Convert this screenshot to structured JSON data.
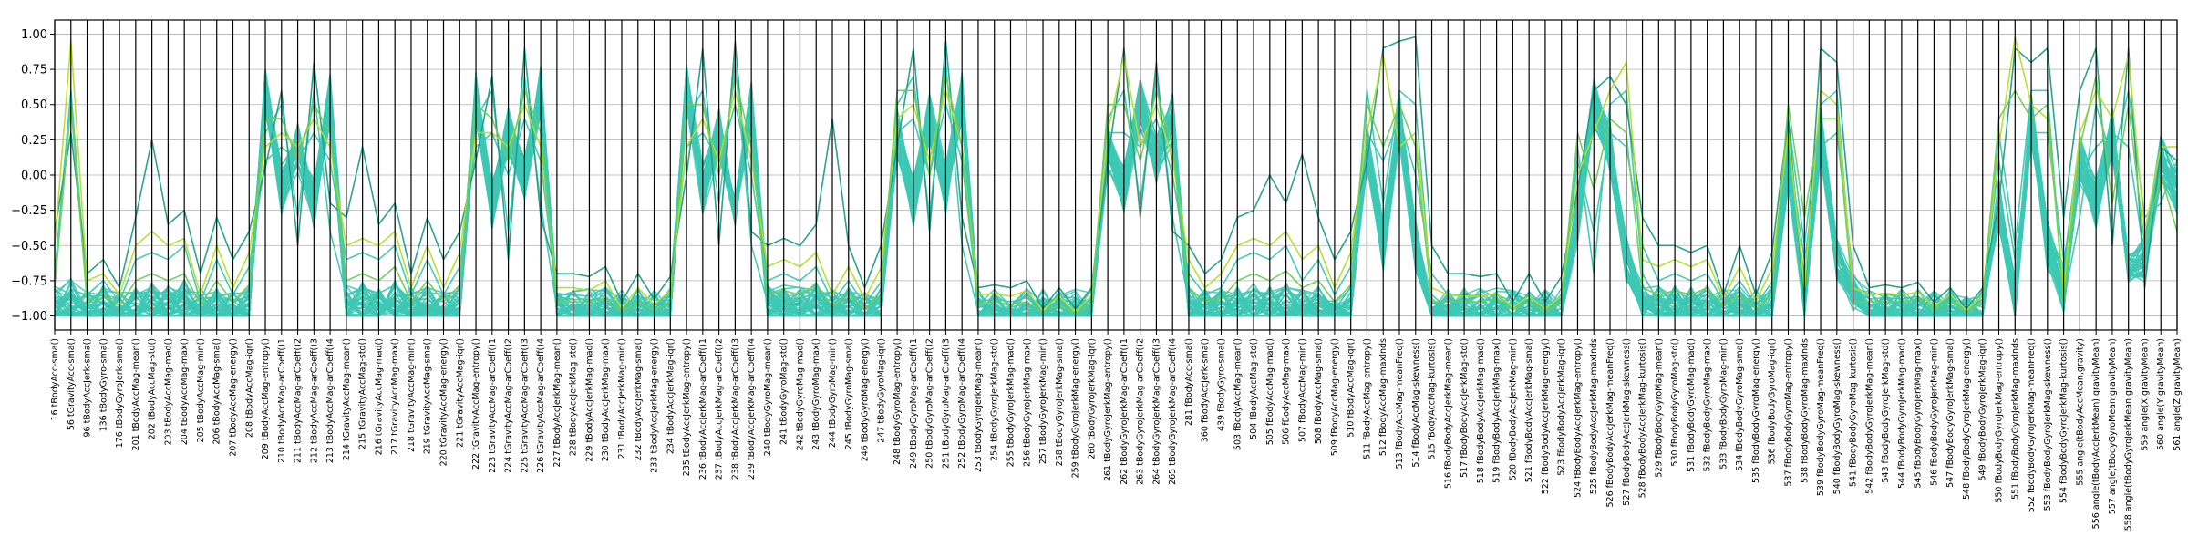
{
  "chart_data": {
    "type": "parallel-coordinates",
    "title": "",
    "ylim": [
      -1.1,
      1.1
    ],
    "yticks": [
      "1.00",
      "0.75",
      "0.50",
      "0.25",
      "0.00",
      "−0.25",
      "−0.50",
      "−0.75",
      "−1.00"
    ],
    "ytick_values": [
      1.0,
      0.75,
      0.5,
      0.25,
      0.0,
      -0.25,
      -0.5,
      -0.75,
      -1.0
    ],
    "grid": true,
    "colors": {
      "main": "#3cc8b4",
      "dark": "#1f9e89",
      "accent": "#b5de2b",
      "accent2": "#6ece58"
    },
    "axes": [
      "16 tBodyAcc-sma()",
      "56 tGravityAcc-sma()",
      "96 tBodyAccJerk-sma()",
      "136 tBodyGyro-sma()",
      "176 tBodyGyroJerk-sma()",
      "201 tBodyAccMag-mean()",
      "202 tBodyAccMag-std()",
      "203 tBodyAccMag-mad()",
      "204 tBodyAccMag-max()",
      "205 tBodyAccMag-min()",
      "206 tBodyAccMag-sma()",
      "207 tBodyAccMag-energy()",
      "208 tBodyAccMag-iqr()",
      "209 tBodyAccMag-entropy()",
      "210 tBodyAccMag-arCoeff()1",
      "211 tBodyAccMag-arCoeff()2",
      "212 tBodyAccMag-arCoeff()3",
      "213 tBodyAccMag-arCoeff()4",
      "214 tGravityAccMag-mean()",
      "215 tGravityAccMag-std()",
      "216 tGravityAccMag-mad()",
      "217 tGravityAccMag-max()",
      "218 tGravityAccMag-min()",
      "219 tGravityAccMag-sma()",
      "220 tGravityAccMag-energy()",
      "221 tGravityAccMag-iqr()",
      "222 tGravityAccMag-entropy()",
      "223 tGravityAccMag-arCoeff()1",
      "224 tGravityAccMag-arCoeff()2",
      "225 tGravityAccMag-arCoeff()3",
      "226 tGravityAccMag-arCoeff()4",
      "227 tBodyAccJerkMag-mean()",
      "228 tBodyAccJerkMag-std()",
      "229 tBodyAccJerkMag-mad()",
      "230 tBodyAccJerkMag-max()",
      "231 tBodyAccJerkMag-min()",
      "232 tBodyAccJerkMag-sma()",
      "233 tBodyAccJerkMag-energy()",
      "234 tBodyAccJerkMag-iqr()",
      "235 tBodyAccJerkMag-entropy()",
      "236 tBodyAccJerkMag-arCoeff()1",
      "237 tBodyAccJerkMag-arCoeff()2",
      "238 tBodyAccJerkMag-arCoeff()3",
      "239 tBodyAccJerkMag-arCoeff()4",
      "240 tBodyGyroMag-mean()",
      "241 tBodyGyroMag-std()",
      "242 tBodyGyroMag-mad()",
      "243 tBodyGyroMag-max()",
      "244 tBodyGyroMag-min()",
      "245 tBodyGyroMag-sma()",
      "246 tBodyGyroMag-energy()",
      "247 tBodyGyroMag-iqr()",
      "248 tBodyGyroMag-entropy()",
      "249 tBodyGyroMag-arCoeff()1",
      "250 tBodyGyroMag-arCoeff()2",
      "251 tBodyGyroMag-arCoeff()3",
      "252 tBodyGyroMag-arCoeff()4",
      "253 tBodyGyroJerkMag-mean()",
      "254 tBodyGyroJerkMag-std()",
      "255 tBodyGyroJerkMag-mad()",
      "256 tBodyGyroJerkMag-max()",
      "257 tBodyGyroJerkMag-min()",
      "258 tBodyGyroJerkMag-sma()",
      "259 tBodyGyroJerkMag-energy()",
      "260 tBodyGyroJerkMag-iqr()",
      "261 tBodyGyroJerkMag-entropy()",
      "262 tBodyGyroJerkMag-arCoeff()1",
      "263 tBodyGyroJerkMag-arCoeff()2",
      "264 tBodyGyroJerkMag-arCoeff()3",
      "265 tBodyGyroJerkMag-arCoeff()4",
      "281 fBodyAcc-sma()",
      "360 fBodyAccJerk-sma()",
      "439 fBodyGyro-sma()",
      "503 fBodyAccMag-mean()",
      "504 fBodyAccMag-std()",
      "505 fBodyAccMag-mad()",
      "506 fBodyAccMag-max()",
      "507 fBodyAccMag-min()",
      "508 fBodyAccMag-sma()",
      "509 fBodyAccMag-energy()",
      "510 fBodyAccMag-iqr()",
      "511 fBodyAccMag-entropy()",
      "512 fBodyAccMag-maxInds",
      "513 fBodyAccMag-meanFreq()",
      "514 fBodyAccMag-skewness()",
      "515 fBodyAccMag-kurtosis()",
      "516 fBodyBodyAccJerkMag-mean()",
      "517 fBodyBodyAccJerkMag-std()",
      "518 fBodyBodyAccJerkMag-mad()",
      "519 fBodyBodyAccJerkMag-max()",
      "520 fBodyBodyAccJerkMag-min()",
      "521 fBodyBodyAccJerkMag-sma()",
      "522 fBodyBodyAccJerkMag-energy()",
      "523 fBodyBodyAccJerkMag-iqr()",
      "524 fBodyBodyAccJerkMag-entropy()",
      "525 fBodyBodyAccJerkMag-maxInds",
      "526 fBodyBodyAccJerkMag-meanFreq()",
      "527 fBodyBodyAccJerkMag-skewness()",
      "528 fBodyBodyAccJerkMag-kurtosis()",
      "529 fBodyBodyGyroMag-mean()",
      "530 fBodyBodyGyroMag-std()",
      "531 fBodyBodyGyroMag-mad()",
      "532 fBodyBodyGyroMag-max()",
      "533 fBodyBodyGyroMag-min()",
      "534 fBodyBodyGyroMag-sma()",
      "535 fBodyBodyGyroMag-energy()",
      "536 fBodyBodyGyroMag-iqr()",
      "537 fBodyBodyGyroMag-entropy()",
      "538 fBodyBodyGyroMag-maxInds",
      "539 fBodyBodyGyroMag-meanFreq()",
      "540 fBodyBodyGyroMag-skewness()",
      "541 fBodyBodyGyroMag-kurtosis()",
      "542 fBodyBodyGyroJerkMag-mean()",
      "543 fBodyBodyGyroJerkMag-std()",
      "544 fBodyBodyGyroJerkMag-mad()",
      "545 fBodyBodyGyroJerkMag-max()",
      "546 fBodyBodyGyroJerkMag-min()",
      "547 fBodyBodyGyroJerkMag-sma()",
      "548 fBodyBodyGyroJerkMag-energy()",
      "549 fBodyBodyGyroJerkMag-iqr()",
      "550 fBodyBodyGyroJerkMag-entropy()",
      "551 fBodyBodyGyroJerkMag-maxInds",
      "552 fBodyBodyGyroJerkMag-meanFreq()",
      "553 fBodyBodyGyroJerkMag-skewness()",
      "554 fBodyBodyGyroJerkMag-kurtosis()",
      "555 angle(tBodyAccMean,gravity)",
      "556 angle(tBodyAccJerkMean),gravityMean)",
      "557 angle(tBodyGyroMean,gravityMean)",
      "558 angle(tBodyGyroJerkMean,gravityMean)",
      "559 angle(X,gravityMean)",
      "560 angle(Y,gravityMean)",
      "561 angle(Z,gravityMean)"
    ],
    "series": [
      {
        "color": "main",
        "values": [
          -0.95,
          -0.9,
          -0.98,
          -0.95,
          -0.99,
          -0.96,
          -0.94,
          -0.95,
          -0.92,
          -0.98,
          -0.96,
          -0.99,
          -0.97,
          0.6,
          -0.1,
          0.2,
          -0.2,
          0.55,
          -0.96,
          -0.94,
          -0.95,
          -0.93,
          -0.97,
          -0.96,
          -0.99,
          -0.95,
          0.55,
          -0.2,
          0.3,
          0.0,
          0.6,
          -0.98,
          -0.98,
          -0.98,
          -0.97,
          -0.99,
          -0.98,
          -0.99,
          -0.98,
          0.6,
          -0.1,
          0.3,
          -0.2,
          0.5,
          -0.96,
          -0.95,
          -0.96,
          -0.93,
          -0.98,
          -0.96,
          -0.99,
          -0.96,
          0.3,
          -0.2,
          0.4,
          -0.1,
          0.55,
          -0.99,
          -0.99,
          -0.99,
          -0.98,
          -0.99,
          -0.99,
          -0.99,
          -0.99,
          0.2,
          -0.1,
          0.5,
          0.1,
          0.4,
          -0.97,
          -0.98,
          -0.97,
          -0.96,
          -0.95,
          -0.96,
          -0.94,
          -0.97,
          -0.96,
          -0.99,
          -0.97,
          0.2,
          -0.5,
          0.4,
          -0.5,
          -0.9,
          -0.98,
          -0.98,
          -0.98,
          -0.98,
          -0.99,
          -0.98,
          -0.99,
          -0.98,
          -0.3,
          0.5,
          0.2,
          -0.6,
          -0.9,
          -0.96,
          -0.95,
          -0.96,
          -0.95,
          -0.98,
          -0.96,
          -0.99,
          -0.96,
          0.1,
          -0.9,
          0.3,
          -0.6,
          -0.9,
          -0.99,
          -0.99,
          -0.99,
          -0.99,
          -0.99,
          -0.99,
          -0.99,
          -0.99,
          -0.2,
          -0.9,
          0.4,
          -0.5,
          -0.8,
          0.1,
          -0.2,
          0.3,
          -0.6,
          -0.6,
          0.1,
          -0.1
        ]
      },
      {
        "color": "main",
        "values": [
          -0.9,
          -0.85,
          -0.95,
          -0.9,
          -0.97,
          -0.85,
          -0.82,
          -0.85,
          -0.8,
          -0.95,
          -0.85,
          -0.96,
          -0.88,
          0.3,
          0.5,
          -0.3,
          0.6,
          -0.4,
          -0.85,
          -0.8,
          -0.84,
          -0.78,
          -0.9,
          -0.85,
          -0.96,
          -0.86,
          0.4,
          0.6,
          -0.4,
          0.7,
          -0.2,
          -0.95,
          -0.95,
          -0.95,
          -0.93,
          -0.98,
          -0.95,
          -0.98,
          -0.95,
          0.4,
          0.6,
          -0.2,
          0.8,
          -0.5,
          -0.9,
          -0.88,
          -0.9,
          -0.85,
          -0.96,
          -0.9,
          -0.98,
          -0.9,
          0.5,
          0.7,
          -0.3,
          0.8,
          -0.5,
          -0.97,
          -0.96,
          -0.97,
          -0.95,
          -0.99,
          -0.97,
          -0.99,
          -0.97,
          0.4,
          0.6,
          -0.2,
          0.7,
          -0.3,
          -0.9,
          -0.94,
          -0.92,
          -0.85,
          -0.82,
          -0.85,
          -0.8,
          -0.9,
          -0.85,
          -0.96,
          -0.88,
          0.6,
          -0.2,
          0.6,
          0.5,
          -0.85,
          -0.95,
          -0.95,
          -0.95,
          -0.94,
          -0.98,
          -0.95,
          -0.98,
          -0.95,
          0.2,
          -0.7,
          0.5,
          0.6,
          -0.7,
          -0.9,
          -0.88,
          -0.9,
          -0.85,
          -0.95,
          -0.9,
          -0.98,
          -0.9,
          0.4,
          -0.5,
          0.5,
          0.6,
          -0.85,
          -0.96,
          -0.96,
          -0.96,
          -0.95,
          -0.98,
          -0.96,
          -0.99,
          -0.96,
          0.3,
          -0.5,
          0.6,
          0.6,
          -0.9,
          -0.3,
          0.5,
          0.1,
          0.6,
          -0.3,
          -0.2,
          0.1
        ]
      },
      {
        "color": "main",
        "values": [
          -0.7,
          0.6,
          -0.85,
          -0.75,
          -0.9,
          -0.6,
          -0.55,
          -0.6,
          -0.5,
          -0.9,
          -0.6,
          -0.85,
          -0.65,
          0.1,
          0.2,
          0.1,
          0.3,
          0.1,
          -0.6,
          -0.55,
          -0.6,
          -0.5,
          -0.85,
          -0.6,
          -0.85,
          -0.65,
          0.2,
          0.3,
          0.0,
          0.4,
          0.1,
          -0.85,
          -0.85,
          -0.86,
          -0.8,
          -0.96,
          -0.85,
          -0.95,
          -0.86,
          0.2,
          0.3,
          0.1,
          0.5,
          0.0,
          -0.75,
          -0.7,
          -0.75,
          -0.65,
          -0.9,
          -0.75,
          -0.92,
          -0.76,
          0.3,
          0.4,
          0.0,
          0.5,
          0.1,
          -0.9,
          -0.88,
          -0.9,
          -0.87,
          -0.97,
          -0.9,
          -0.98,
          -0.9,
          0.3,
          0.3,
          0.2,
          0.4,
          0.0,
          -0.7,
          -0.85,
          -0.8,
          -0.6,
          -0.55,
          -0.6,
          -0.5,
          -0.75,
          -0.6,
          -0.85,
          -0.65,
          0.3,
          0.1,
          0.4,
          0.0,
          -0.7,
          -0.85,
          -0.85,
          -0.86,
          -0.84,
          -0.95,
          -0.85,
          -0.96,
          -0.86,
          0.1,
          -0.4,
          0.3,
          0.2,
          -0.5,
          -0.75,
          -0.7,
          -0.75,
          -0.7,
          -0.9,
          -0.75,
          -0.92,
          -0.76,
          0.2,
          -0.6,
          0.2,
          0.3,
          -0.7,
          -0.88,
          -0.87,
          -0.88,
          -0.86,
          -0.95,
          -0.88,
          -0.97,
          -0.88,
          0.1,
          -0.6,
          0.3,
          0.3,
          -0.6,
          0.0,
          0.2,
          0.3,
          0.2,
          -0.6,
          0.0,
          -0.2
        ]
      },
      {
        "color": "dark",
        "values": [
          -0.4,
          0.3,
          -0.7,
          -0.6,
          -0.8,
          -0.3,
          0.25,
          -0.35,
          -0.25,
          -0.7,
          -0.3,
          -0.6,
          -0.4,
          0.05,
          0.6,
          -0.5,
          0.8,
          -0.2,
          -0.3,
          0.2,
          -0.35,
          -0.2,
          -0.7,
          -0.3,
          -0.6,
          -0.4,
          0.1,
          0.7,
          -0.6,
          0.9,
          -0.3,
          -0.7,
          -0.7,
          -0.72,
          -0.65,
          -0.9,
          -0.7,
          -0.88,
          -0.72,
          0.0,
          0.9,
          -0.5,
          0.95,
          -0.4,
          -0.5,
          -0.45,
          -0.5,
          -0.35,
          0.4,
          -0.5,
          -0.8,
          -0.5,
          0.2,
          0.9,
          -0.4,
          0.95,
          -0.3,
          -0.8,
          -0.78,
          -0.8,
          -0.75,
          -0.95,
          -0.8,
          -0.95,
          -0.8,
          0.1,
          0.9,
          -0.3,
          0.8,
          -0.4,
          -0.5,
          -0.7,
          -0.6,
          -0.3,
          -0.25,
          0.0,
          -0.2,
          0.15,
          -0.3,
          -0.6,
          -0.4,
          0.1,
          0.9,
          0.95,
          0.98,
          -0.5,
          -0.7,
          -0.7,
          -0.72,
          -0.7,
          -0.9,
          -0.7,
          -0.9,
          -0.72,
          -0.1,
          0.6,
          0.7,
          0.5,
          -0.3,
          -0.5,
          -0.5,
          -0.55,
          -0.5,
          -0.85,
          -0.5,
          -0.85,
          -0.55,
          0.4,
          -0.9,
          0.9,
          0.8,
          -0.5,
          -0.8,
          -0.78,
          -0.8,
          -0.76,
          -0.9,
          -0.8,
          -0.95,
          -0.8,
          -0.2,
          0.9,
          0.8,
          0.9,
          -0.3,
          0.6,
          0.9,
          -0.5,
          0.9,
          -0.8,
          0.2,
          0.1
        ]
      },
      {
        "color": "accent",
        "values": [
          -0.5,
          0.95,
          -0.75,
          -0.7,
          -0.85,
          -0.5,
          -0.4,
          -0.5,
          -0.45,
          -0.85,
          -0.5,
          -0.8,
          -0.55,
          0.2,
          0.3,
          0.2,
          0.4,
          0.2,
          -0.5,
          -0.45,
          -0.5,
          -0.4,
          -0.8,
          -0.5,
          -0.8,
          -0.55,
          0.3,
          0.3,
          0.2,
          0.5,
          0.2,
          -0.8,
          -0.8,
          -0.82,
          -0.75,
          -0.95,
          -0.8,
          -0.92,
          -0.82,
          0.2,
          0.4,
          0.1,
          0.6,
          0.1,
          -0.65,
          -0.6,
          -0.65,
          -0.55,
          -0.85,
          -0.65,
          -0.88,
          -0.66,
          0.4,
          0.5,
          0.1,
          0.6,
          0.2,
          -0.85,
          -0.84,
          -0.86,
          -0.82,
          -0.96,
          -0.86,
          -0.97,
          -0.86,
          0.3,
          0.85,
          0.2,
          0.5,
          0.1,
          -0.6,
          -0.8,
          -0.7,
          -0.5,
          -0.45,
          -0.5,
          -0.4,
          -0.6,
          -0.5,
          -0.8,
          -0.55,
          0.3,
          0.85,
          0.2,
          0.3,
          -0.8,
          -0.85,
          -0.86,
          -0.86,
          -0.84,
          -0.94,
          -0.86,
          -0.95,
          -0.86,
          0.0,
          0.3,
          0.6,
          0.8,
          -0.6,
          -0.65,
          -0.6,
          -0.65,
          -0.6,
          -0.88,
          -0.65,
          -0.9,
          -0.66,
          0.3,
          -0.8,
          0.6,
          0.5,
          -0.8,
          -0.85,
          -0.84,
          -0.85,
          -0.83,
          -0.93,
          -0.85,
          -0.96,
          -0.85,
          0.2,
          0.98,
          0.5,
          0.4,
          -0.8,
          0.3,
          0.6,
          0.4,
          0.85,
          -0.4,
          0.2,
          0.2
        ]
      },
      {
        "color": "accent2",
        "values": [
          -0.8,
          0.5,
          -0.9,
          -0.85,
          -0.93,
          -0.75,
          -0.7,
          -0.75,
          -0.7,
          -0.92,
          -0.75,
          -0.9,
          -0.78,
          0.4,
          0.4,
          0.1,
          0.5,
          0.3,
          -0.75,
          -0.7,
          -0.75,
          -0.65,
          -0.9,
          -0.75,
          -0.9,
          -0.78,
          0.5,
          0.4,
          0.1,
          0.6,
          0.3,
          -0.9,
          -0.9,
          -0.9,
          -0.88,
          -0.97,
          -0.9,
          -0.96,
          -0.9,
          0.5,
          0.5,
          0.0,
          0.7,
          0.2,
          -0.85,
          -0.82,
          -0.85,
          -0.78,
          -0.93,
          -0.85,
          -0.95,
          -0.85,
          0.6,
          0.6,
          0.0,
          0.7,
          0.2,
          -0.92,
          -0.9,
          -0.92,
          -0.9,
          -0.97,
          -0.92,
          -0.98,
          -0.92,
          0.5,
          0.5,
          0.1,
          0.6,
          0.2,
          -0.8,
          -0.9,
          -0.88,
          -0.75,
          -0.7,
          -0.75,
          -0.68,
          -0.8,
          -0.75,
          -0.9,
          -0.78,
          0.5,
          0.2,
          0.5,
          0.2,
          -0.9,
          -0.9,
          -0.9,
          -0.9,
          -0.88,
          -0.96,
          -0.9,
          -0.97,
          -0.9,
          0.3,
          -0.1,
          0.4,
          0.3,
          -0.8,
          -0.85,
          -0.82,
          -0.85,
          -0.8,
          -0.93,
          -0.85,
          -0.95,
          -0.85,
          0.5,
          -0.3,
          0.4,
          0.4,
          -0.9,
          -0.9,
          -0.9,
          -0.9,
          -0.88,
          -0.95,
          -0.9,
          -0.97,
          -0.9,
          0.4,
          0.6,
          0.4,
          0.5,
          -0.9,
          0.2,
          0.7,
          -0.2,
          0.5,
          -0.5,
          0.0,
          -0.4
        ]
      }
    ]
  }
}
